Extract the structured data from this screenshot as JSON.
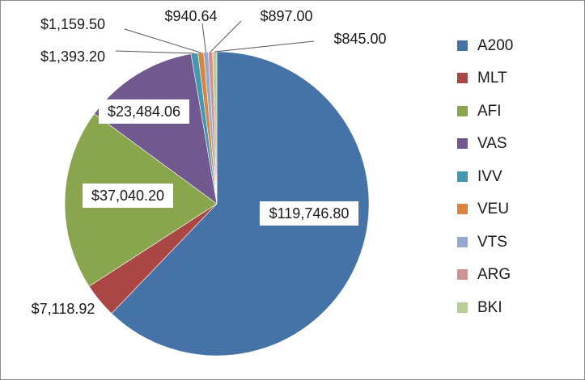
{
  "chart_data": {
    "type": "pie",
    "categories": [
      "A200",
      "MLT",
      "AFI",
      "VAS",
      "IVV",
      "VEU",
      "VTS",
      "ARG",
      "BKI"
    ],
    "values": [
      119746.8,
      7118.92,
      37040.2,
      23484.06,
      1393.2,
      1159.5,
      940.64,
      897.0,
      845.0
    ],
    "data_labels": [
      "$119,746.80",
      "$7,118.92",
      "$37,040.20",
      "$23,484.06",
      "$1,393.20",
      "$1,159.50",
      "$940.64",
      "$897.00",
      "$845.00"
    ],
    "colors": [
      "#4572A7",
      "#AA4643",
      "#89A54E",
      "#71588F",
      "#4198AF",
      "#DB843D",
      "#93A9CF",
      "#D19392",
      "#B9CD96"
    ],
    "legend_position": "right",
    "start_angle": "12 o'clock",
    "direction": "clockwise"
  }
}
